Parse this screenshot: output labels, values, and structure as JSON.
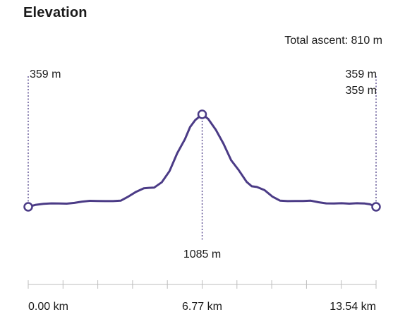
{
  "header": {
    "title": "Elevation",
    "total_ascent": "Total ascent: 810 m"
  },
  "colors": {
    "line": "#4b3b86",
    "axis": "#bdbdbd",
    "text": "#1a1a1a"
  },
  "chart_data": {
    "type": "line",
    "xlim": [
      0,
      13.54
    ],
    "x_tick_labels": [
      "0.00 km",
      "6.77 km",
      "13.54 km"
    ],
    "x_tick_count": 11,
    "markers": [
      {
        "x": 0.0,
        "label": "359 m",
        "placement": "above"
      },
      {
        "x": 6.77,
        "label": "1085 m",
        "placement": "below"
      },
      {
        "x": 13.54,
        "label": "359 m",
        "label2": "359 m",
        "placement": "above"
      }
    ],
    "series": [
      {
        "x": [
          0,
          0.3,
          0.6,
          0.9,
          1.2,
          1.5,
          1.8,
          2.1,
          2.4,
          2.7,
          3.0,
          3.3,
          3.6,
          3.9,
          4.2,
          4.5,
          4.7,
          4.9,
          5.2,
          5.5,
          5.8,
          6.1,
          6.3,
          6.5,
          6.77,
          7.0,
          7.3,
          7.6,
          7.9,
          8.2,
          8.5,
          8.7,
          8.9,
          9.2,
          9.5,
          9.8,
          10.1,
          10.4,
          10.7,
          11.0,
          11.3,
          11.6,
          11.9,
          12.2,
          12.5,
          12.8,
          13.1,
          13.3,
          13.54
        ],
        "y": [
          359,
          375,
          383,
          386,
          385,
          384,
          390,
          400,
          406,
          405,
          404,
          404,
          407,
          440,
          477,
          504,
          508,
          510,
          552,
          640,
          780,
          890,
          985,
          1040,
          1085,
          1050,
          965,
          855,
          725,
          645,
          555,
          520,
          515,
          490,
          440,
          408,
          404,
          405,
          405,
          407,
          395,
          386,
          385,
          387,
          384,
          387,
          385,
          379,
          359
        ]
      }
    ]
  }
}
